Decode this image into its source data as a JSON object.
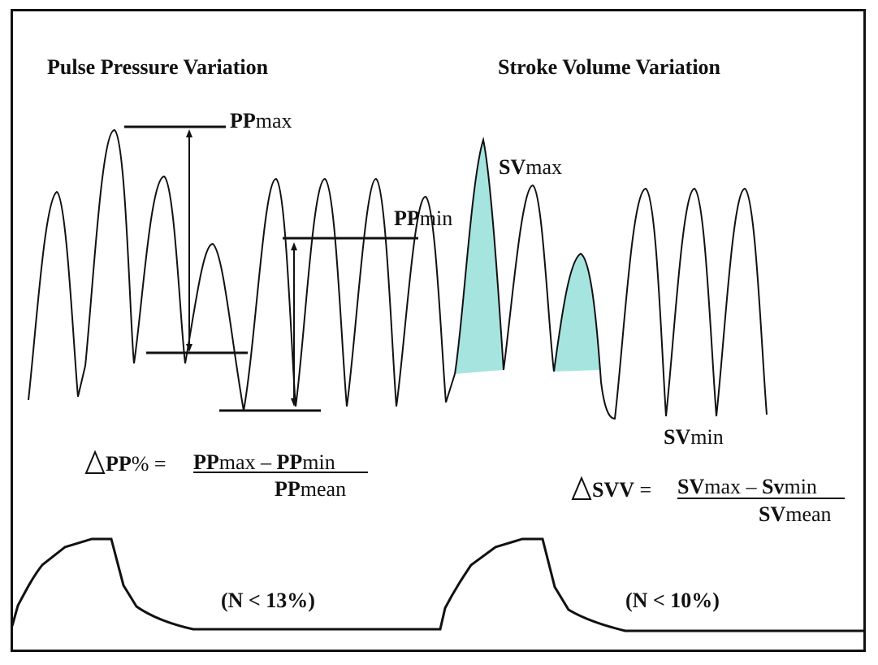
{
  "colors": {
    "line": "#111111",
    "fill": "#a6e4df"
  },
  "left": {
    "title": "Pulse Pressure Variation",
    "pp_max_label": {
      "bold": "PP",
      "rest": "max"
    },
    "pp_min_label": {
      "bold": "PP",
      "rest": "min"
    },
    "formula": {
      "delta_symbol": "triangle-icon",
      "lhs_bold": "PP",
      "lhs_rest": "% =",
      "num_a_bold": "PP",
      "num_a_rest": "max",
      "minus": "–",
      "num_b_bold": "PP",
      "num_b_rest": "min",
      "den_bold": "PP",
      "den_rest": "mean"
    },
    "normal": "(N < 13%)"
  },
  "right": {
    "title": "Stroke Volume Variation",
    "sv_max_label": {
      "bold": "SV",
      "rest": "max"
    },
    "sv_min_label": {
      "bold": "SV",
      "rest": "min"
    },
    "formula": {
      "delta_symbol": "triangle-icon",
      "lhs_bold": "SVV",
      "lhs_rest": "=",
      "num_a_bold": "SV",
      "num_a_rest": "max",
      "minus": "–",
      "num_b_bold": "Sv",
      "num_b_rest": "min",
      "den_bold": "SV",
      "den_rest": "mean"
    },
    "normal": "(N < 10%)"
  }
}
